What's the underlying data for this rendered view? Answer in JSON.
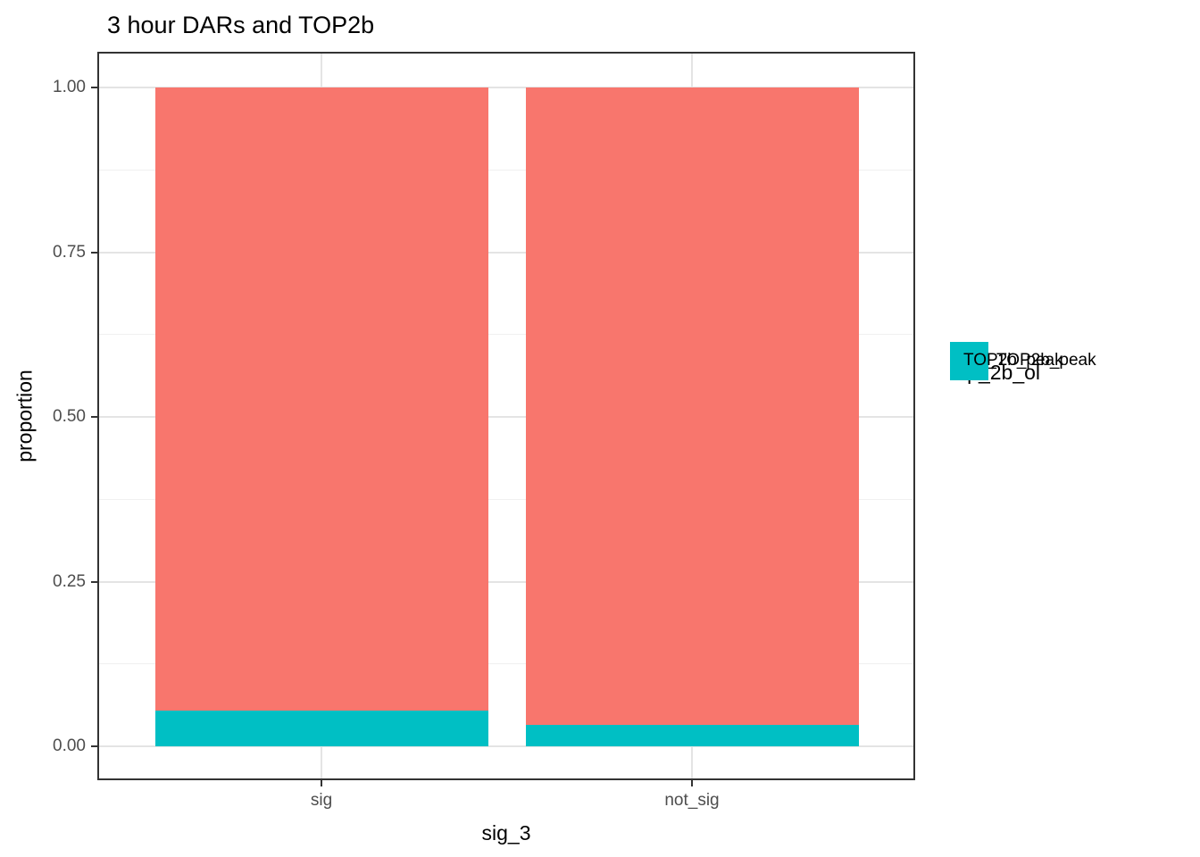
{
  "chart_data": {
    "type": "bar",
    "stacked": true,
    "normalized": true,
    "title": "3 hour DARs and TOP2b",
    "xlabel": "sig_3",
    "ylabel": "proportion",
    "categories": [
      "sig",
      "not_sig"
    ],
    "series": [
      {
        "name": "not_TOP2b_peak",
        "color": "#F8766D",
        "values": [
          0.946,
          0.967
        ]
      },
      {
        "name": "TOP2b_peak",
        "color": "#00BFC4",
        "values": [
          0.054,
          0.033
        ]
      }
    ],
    "ylim": [
      0,
      1
    ],
    "yticks": [
      0,
      0.25,
      0.5,
      0.75,
      1
    ],
    "ytick_labels": [
      "0.00",
      "0.25",
      "0.50",
      "0.75",
      "1.00"
    ],
    "minor_yticks": [
      0.125,
      0.375,
      0.625,
      0.875
    ],
    "grid": true,
    "legend_title": "top_2b_ol",
    "legend_position": "right",
    "colors": {
      "panel_border": "#333333",
      "tick_mark": "#333333",
      "grid_major": "#E4E4E4",
      "grid_minor": "#F0F0F0",
      "tick_label": "#4D4D4D"
    }
  }
}
